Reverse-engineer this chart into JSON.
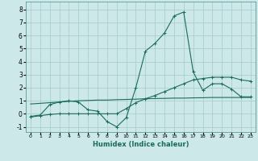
{
  "xlabel": "Humidex (Indice chaleur)",
  "background_color": "#cce8e8",
  "grid_color": "#aacece",
  "line_color": "#1a6b5a",
  "xlim": [
    -0.5,
    23.5
  ],
  "ylim": [
    -1.4,
    8.6
  ],
  "yticks": [
    -1,
    0,
    1,
    2,
    3,
    4,
    5,
    6,
    7,
    8
  ],
  "xticks": [
    0,
    1,
    2,
    3,
    4,
    5,
    6,
    7,
    8,
    9,
    10,
    11,
    12,
    13,
    14,
    15,
    16,
    17,
    18,
    19,
    20,
    21,
    22,
    23
  ],
  "curve1_x": [
    0,
    1,
    2,
    3,
    4,
    5,
    6,
    7,
    8,
    9,
    10,
    11,
    12,
    13,
    14,
    15,
    16,
    17,
    18,
    19,
    20,
    21,
    22,
    23
  ],
  "curve1_y": [
    -0.2,
    -0.1,
    0.7,
    0.9,
    1.0,
    0.9,
    0.3,
    0.2,
    -0.6,
    -1.0,
    -0.3,
    2.0,
    4.8,
    5.4,
    6.2,
    7.5,
    7.8,
    3.2,
    1.8,
    2.3,
    2.3,
    1.9,
    1.3,
    1.3
  ],
  "curve2_x": [
    0,
    1,
    2,
    3,
    4,
    5,
    6,
    7,
    8,
    9,
    10,
    11,
    12,
    13,
    14,
    15,
    16,
    17,
    18,
    19,
    20,
    21,
    22,
    23
  ],
  "curve2_y": [
    -0.25,
    -0.15,
    -0.05,
    0.0,
    0.0,
    0.0,
    0.0,
    0.0,
    0.0,
    0.0,
    0.4,
    0.85,
    1.15,
    1.4,
    1.7,
    2.0,
    2.3,
    2.6,
    2.7,
    2.8,
    2.8,
    2.8,
    2.6,
    2.5
  ],
  "curve3_x": [
    0,
    1,
    2,
    3,
    4,
    5,
    6,
    7,
    8,
    9,
    10,
    11,
    12,
    13,
    14,
    15,
    16,
    17,
    18,
    19,
    20,
    21,
    22,
    23
  ],
  "curve3_y": [
    0.75,
    0.8,
    0.85,
    0.9,
    0.95,
    1.0,
    1.02,
    1.05,
    1.05,
    1.08,
    1.1,
    1.12,
    1.15,
    1.17,
    1.18,
    1.2,
    1.2,
    1.22,
    1.23,
    1.25,
    1.25,
    1.25,
    1.25,
    1.25
  ]
}
